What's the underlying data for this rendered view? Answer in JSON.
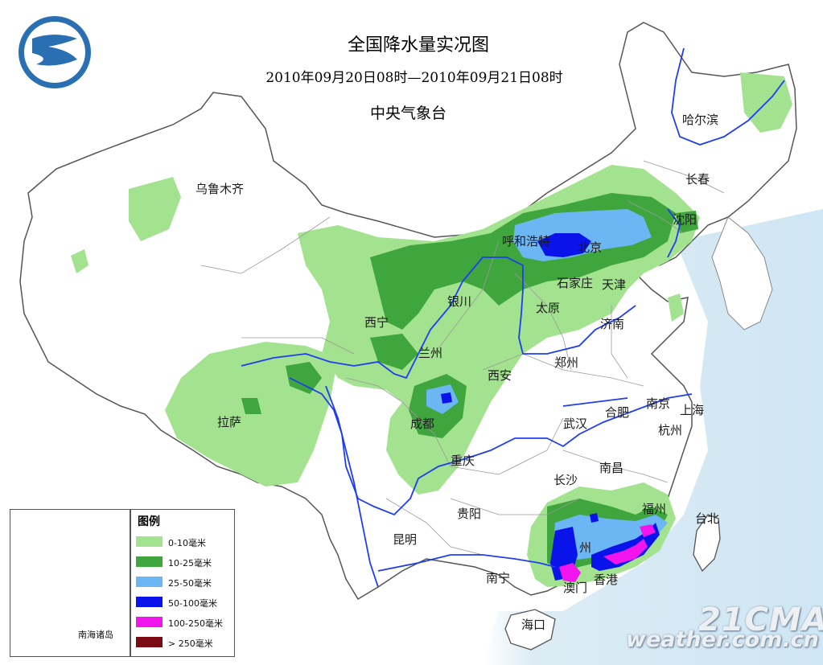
{
  "header": {
    "title": "全国降水量实况图",
    "period": "2010年09月20日08时—2010年09月21日08时",
    "issuer": "中央气象台"
  },
  "cities": [
    {
      "key": "harbin",
      "name": "哈尔滨"
    },
    {
      "key": "changchun",
      "name": "长春"
    },
    {
      "key": "shenyang",
      "name": "沈阳"
    },
    {
      "key": "urumqi",
      "name": "乌鲁木齐"
    },
    {
      "key": "hohhot",
      "name": "呼和浩特"
    },
    {
      "key": "beijing",
      "name": "北京"
    },
    {
      "key": "tianjin",
      "name": "天津"
    },
    {
      "key": "shijiazhuang",
      "name": "石家庄"
    },
    {
      "key": "taiyuan",
      "name": "太原"
    },
    {
      "key": "yinchuan",
      "name": "银川"
    },
    {
      "key": "jinan",
      "name": "济南"
    },
    {
      "key": "xining",
      "name": "西宁"
    },
    {
      "key": "lanzhou",
      "name": "兰州"
    },
    {
      "key": "zhengzhou",
      "name": "郑州"
    },
    {
      "key": "xian",
      "name": "西安"
    },
    {
      "key": "nanjing",
      "name": "南京"
    },
    {
      "key": "shanghai",
      "name": "上海"
    },
    {
      "key": "hefei",
      "name": "合肥"
    },
    {
      "key": "wuhan",
      "name": "武汉"
    },
    {
      "key": "hangzhou",
      "name": "杭州"
    },
    {
      "key": "chengdu",
      "name": "成都"
    },
    {
      "key": "lhasa",
      "name": "拉萨"
    },
    {
      "key": "chongqing",
      "name": "重庆"
    },
    {
      "key": "nanchang",
      "name": "南昌"
    },
    {
      "key": "changsha",
      "name": "长沙"
    },
    {
      "key": "fuzhou",
      "name": "福州"
    },
    {
      "key": "taipei",
      "name": "台北"
    },
    {
      "key": "guiyang",
      "name": "贵阳"
    },
    {
      "key": "kunming",
      "name": "昆明"
    },
    {
      "key": "guangzhou",
      "name": "州"
    },
    {
      "key": "nanning",
      "name": "南宁"
    },
    {
      "key": "macau",
      "name": "澳门"
    },
    {
      "key": "hongkong",
      "name": "香港"
    },
    {
      "key": "haikou",
      "name": "海口"
    }
  ],
  "legend": {
    "title": "图例",
    "items": [
      {
        "label": "0-10毫米",
        "color": "#a3e28f"
      },
      {
        "label": "10-25毫米",
        "color": "#3ea63c"
      },
      {
        "label": "25-50毫米",
        "color": "#6cb6f4"
      },
      {
        "label": "50-100毫米",
        "color": "#0a14ea"
      },
      {
        "label": "100-250毫米",
        "color": "#f214ec"
      },
      {
        "label": "> 250毫米",
        "color": "#7a0b14"
      }
    ]
  },
  "inset": {
    "label": "南海诸岛"
  },
  "watermark": {
    "line1": "21CMA",
    "line2": "weather.com.cn"
  },
  "colors": {
    "sea": "#dcecf5",
    "border": "#6e6e6e",
    "river": "#1f3ef2",
    "logo": "#2a6fb2"
  }
}
